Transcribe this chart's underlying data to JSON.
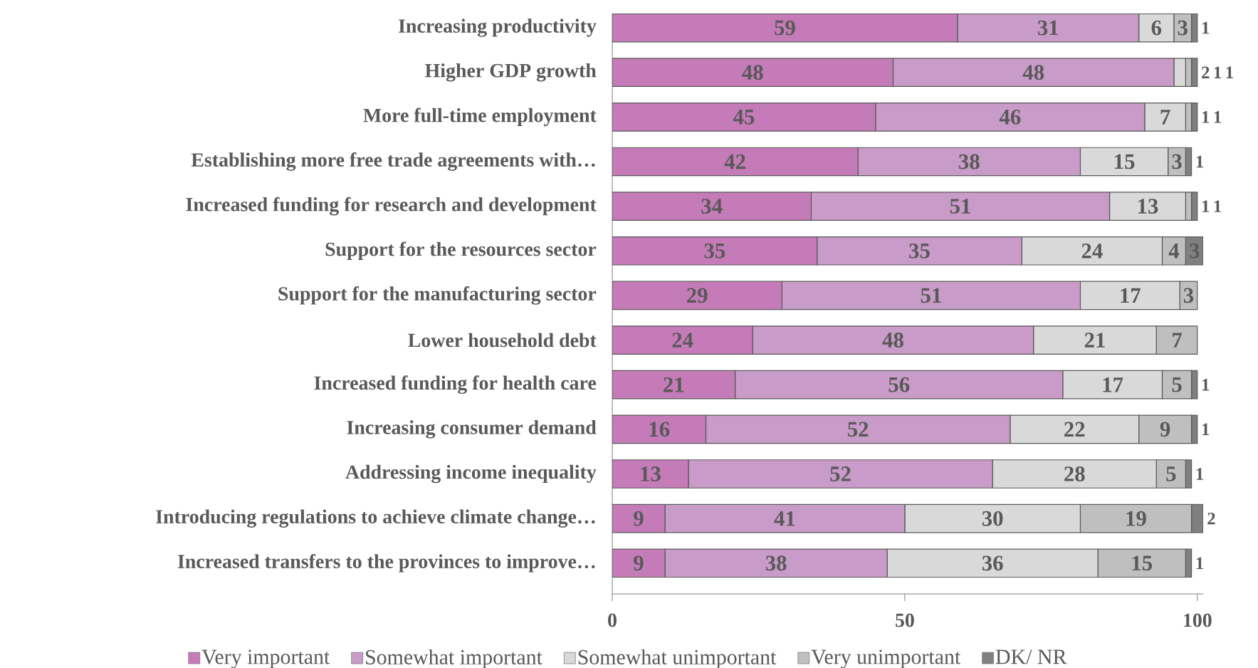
{
  "chart_data": {
    "type": "bar",
    "orientation": "horizontal",
    "stacked": true,
    "data_labels": true,
    "legend": "bottom",
    "grid": false,
    "categories": [
      "Increasing productivity",
      "Higher GDP growth",
      "More full-time employment",
      "Establishing more free trade agreements with…",
      "Increased funding for research and development",
      "Support for the resources sector",
      "Support for the manufacturing sector",
      "Lower household debt",
      "Increased funding for health care",
      "Increasing consumer demand",
      "Addressing income inequality",
      "Introducing regulations to achieve climate change…",
      "Increased transfers to the provinces to improve…"
    ],
    "series": [
      {
        "name": "Very important",
        "color": "#c47bb8",
        "values": [
          59,
          48,
          45,
          42,
          34,
          35,
          29,
          24,
          21,
          16,
          13,
          9,
          9
        ]
      },
      {
        "name": "Somewhat important",
        "color": "#c99bc8",
        "values": [
          31,
          48,
          46,
          38,
          51,
          35,
          51,
          48,
          56,
          52,
          52,
          41,
          38
        ]
      },
      {
        "name": "Somewhat unimportant",
        "color": "#d9d9d9",
        "values": [
          6,
          2,
          7,
          15,
          13,
          24,
          17,
          21,
          17,
          22,
          28,
          30,
          36
        ]
      },
      {
        "name": "Very unimportant",
        "color": "#bfbfbf",
        "values": [
          3,
          1,
          1,
          3,
          1,
          4,
          3,
          7,
          5,
          9,
          5,
          19,
          15
        ]
      },
      {
        "name": "DK/ NR",
        "color": "#808080",
        "values": [
          1,
          1,
          1,
          1,
          1,
          3,
          null,
          null,
          1,
          1,
          1,
          2,
          1
        ]
      }
    ],
    "xlim": [
      0,
      101
    ],
    "xticks": [
      0,
      50,
      100
    ]
  }
}
